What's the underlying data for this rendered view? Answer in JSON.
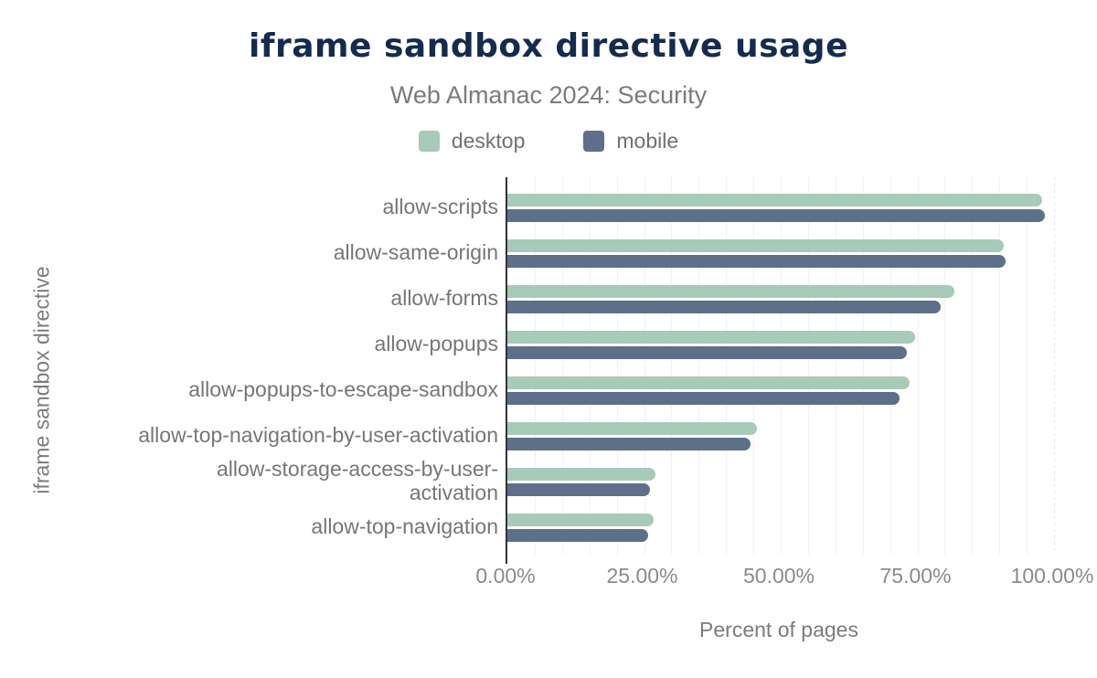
{
  "title": "iframe sandbox directive usage",
  "subtitle": "Web Almanac 2024: Security",
  "legend": [
    {
      "label": "desktop",
      "color": "#a8cab8"
    },
    {
      "label": "mobile",
      "color": "#5e7089"
    }
  ],
  "x_axis": {
    "title": "Percent of pages",
    "ticks": [
      "0.00%",
      "25.00%",
      "50.00%",
      "75.00%",
      "100.00%"
    ],
    "tick_positions_pct": [
      0,
      25,
      50,
      75,
      100
    ],
    "minor_gridline_step_pct": 5
  },
  "y_axis": {
    "title": "iframe sandbox directive"
  },
  "chart_data": {
    "type": "bar",
    "orientation": "horizontal",
    "title": "iframe sandbox directive usage",
    "subtitle": "Web Almanac 2024: Security",
    "xlabel": "Percent of pages",
    "ylabel": "iframe sandbox directive",
    "xlim": [
      0,
      100
    ],
    "grid": "vertical minor every 5%",
    "legend_position": "top",
    "categories": [
      "allow-scripts",
      "allow-same-origin",
      "allow-forms",
      "allow-popups",
      "allow-popups-to-escape-sandbox",
      "allow-top-navigation-by-user-activation",
      "allow-storage-access-by-user-activation",
      "allow-top-navigation"
    ],
    "series": [
      {
        "name": "desktop",
        "color": "#a8cab8",
        "values": [
          97.9,
          90.8,
          81.7,
          74.6,
          73.6,
          45.6,
          27.1,
          26.7
        ]
      },
      {
        "name": "mobile",
        "color": "#5e7089",
        "values": [
          98.3,
          91.1,
          79.3,
          73.0,
          71.7,
          44.5,
          26.1,
          25.7
        ]
      }
    ]
  },
  "colors": {
    "title": "#152b4e",
    "subtitle": "#7b7b7b",
    "axis_line": "#323338",
    "tick_label": "#8a8a8a",
    "category_label": "#767676",
    "gridline": "#f2f2f2",
    "background": "#ffffff"
  }
}
